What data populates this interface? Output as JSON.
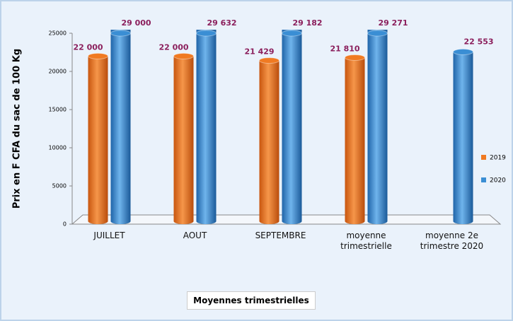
{
  "chart_data": {
    "type": "bar",
    "y_label": "Prix en F CFA du sac de 100 Kg",
    "x_label": "Moyennes trimestrielles",
    "categories": [
      "JUILLET",
      "AOUT",
      "SEPTEMBRE",
      "moyenne trimestrielle",
      "moyenne 2e trimestre 2020"
    ],
    "series": [
      {
        "name": "2019",
        "color": "#f07a22",
        "values": [
          22000,
          22000,
          21429,
          21810,
          null
        ],
        "value_labels": [
          "22 000",
          "22 000",
          "21 429",
          "21 810",
          null
        ]
      },
      {
        "name": "2020",
        "color": "#3a8ed4",
        "values": [
          29000,
          29632,
          29182,
          29271,
          22553
        ],
        "value_labels": [
          "29 000",
          "29 632",
          "29 182",
          "29 271",
          "22 553"
        ]
      }
    ],
    "ylim": [
      0,
      25000
    ],
    "yticks": [
      0,
      5000,
      10000,
      15000,
      20000,
      25000
    ],
    "legend": "right"
  }
}
